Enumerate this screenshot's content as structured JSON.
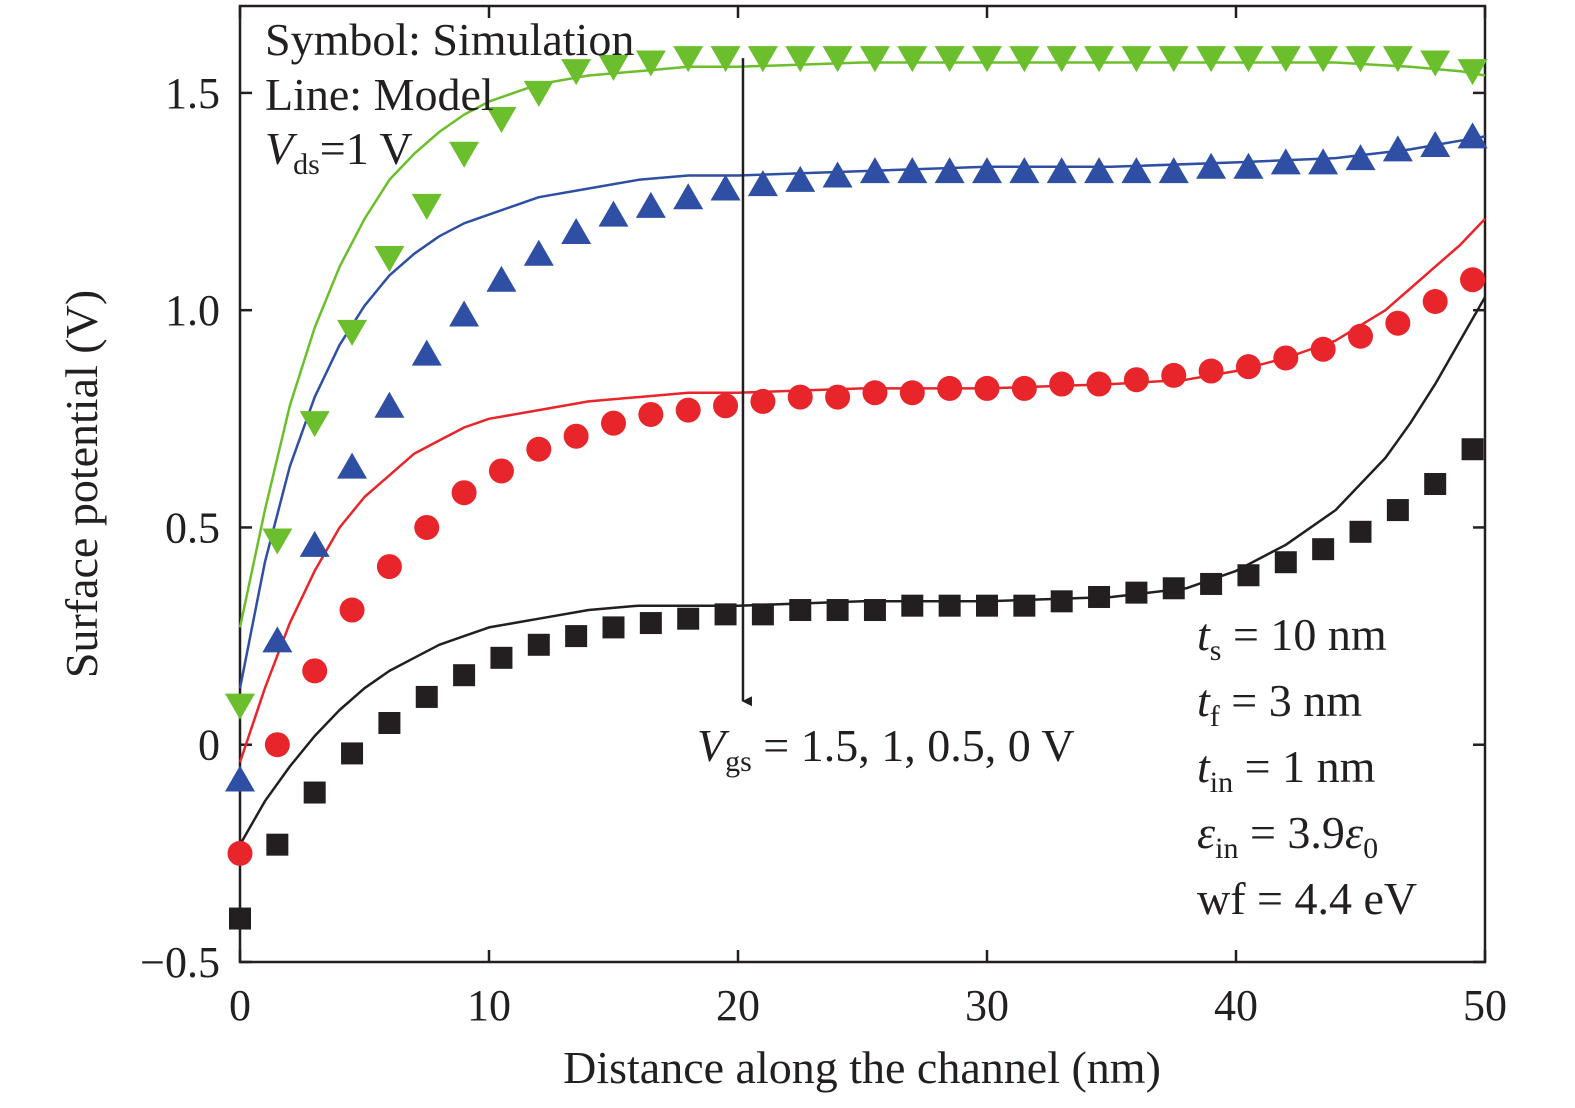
{
  "chart_data": {
    "type": "line",
    "xlabel": "Distance along the channel (nm)",
    "ylabel": "Surface potential (V)",
    "xlim": [
      0,
      50
    ],
    "ylim": [
      -0.5,
      1.7
    ],
    "x_ticks": [
      0,
      10,
      20,
      30,
      40,
      50
    ],
    "x_tick_labels": [
      "0",
      "10",
      "20",
      "30",
      "40",
      "50"
    ],
    "y_ticks": [
      -0.5,
      0,
      0.5,
      1.0,
      1.5
    ],
    "y_tick_labels": [
      "−0.5",
      "0",
      "0.5",
      "1.0",
      "1.5"
    ],
    "grid": false,
    "series": [
      {
        "name": "Vgs = 1.5 V",
        "color": "#6cbf2c",
        "marker": "triangle-down",
        "sim_x": [
          0,
          1.5,
          3,
          4.5,
          6,
          7.5,
          9,
          10.5,
          12,
          13.5,
          15,
          16.5,
          18,
          19.5,
          21,
          22.5,
          24,
          25.5,
          27,
          28.5,
          30,
          31.5,
          33,
          34.5,
          36,
          37.5,
          39,
          40.5,
          42,
          43.5,
          45,
          46.5,
          48,
          49.5
        ],
        "sim_y": [
          0.09,
          0.47,
          0.74,
          0.95,
          1.12,
          1.24,
          1.36,
          1.44,
          1.5,
          1.55,
          1.56,
          1.57,
          1.58,
          1.58,
          1.58,
          1.58,
          1.58,
          1.58,
          1.58,
          1.58,
          1.58,
          1.58,
          1.58,
          1.58,
          1.58,
          1.58,
          1.58,
          1.58,
          1.58,
          1.58,
          1.58,
          1.58,
          1.57,
          1.55
        ],
        "model_x": [
          0,
          1,
          2,
          3,
          4,
          5,
          6,
          7,
          8,
          9,
          10,
          12,
          14,
          16,
          18,
          20,
          25,
          30,
          35,
          40,
          44,
          47,
          49,
          50
        ],
        "model_y": [
          0.27,
          0.54,
          0.78,
          0.96,
          1.1,
          1.21,
          1.3,
          1.36,
          1.41,
          1.45,
          1.48,
          1.52,
          1.54,
          1.55,
          1.56,
          1.56,
          1.57,
          1.57,
          1.57,
          1.57,
          1.57,
          1.56,
          1.55,
          1.54
        ]
      },
      {
        "name": "Vgs = 1 V",
        "color": "#2e4fa3",
        "marker": "triangle-up",
        "sim_x": [
          0,
          1.5,
          3,
          4.5,
          6,
          7.5,
          9,
          10.5,
          12,
          13.5,
          15,
          16.5,
          18,
          19.5,
          21,
          22.5,
          24,
          25.5,
          27,
          28.5,
          30,
          31.5,
          33,
          34.5,
          36,
          37.5,
          39,
          40.5,
          42,
          43.5,
          45,
          46.5,
          48,
          49.5
        ],
        "sim_y": [
          -0.08,
          0.24,
          0.46,
          0.64,
          0.78,
          0.9,
          0.99,
          1.07,
          1.13,
          1.18,
          1.22,
          1.24,
          1.26,
          1.28,
          1.29,
          1.3,
          1.31,
          1.32,
          1.32,
          1.32,
          1.32,
          1.32,
          1.32,
          1.32,
          1.32,
          1.32,
          1.33,
          1.33,
          1.34,
          1.34,
          1.35,
          1.37,
          1.38,
          1.4
        ],
        "model_x": [
          0,
          1,
          2,
          3,
          4,
          5,
          6,
          7,
          8,
          9,
          10,
          12,
          14,
          16,
          18,
          20,
          25,
          30,
          35,
          40,
          44,
          47,
          49,
          50
        ],
        "model_y": [
          0.13,
          0.42,
          0.64,
          0.8,
          0.92,
          1.01,
          1.08,
          1.13,
          1.17,
          1.2,
          1.22,
          1.26,
          1.28,
          1.3,
          1.31,
          1.31,
          1.32,
          1.33,
          1.33,
          1.34,
          1.35,
          1.37,
          1.39,
          1.4
        ]
      },
      {
        "name": "Vgs = 0.5 V",
        "color": "#e8252a",
        "marker": "circle",
        "sim_x": [
          0,
          1.5,
          3,
          4.5,
          6,
          7.5,
          9,
          10.5,
          12,
          13.5,
          15,
          16.5,
          18,
          19.5,
          21,
          22.5,
          24,
          25.5,
          27,
          28.5,
          30,
          31.5,
          33,
          34.5,
          36,
          37.5,
          39,
          40.5,
          42,
          43.5,
          45,
          46.5,
          48,
          49.5
        ],
        "sim_y": [
          -0.25,
          0.0,
          0.17,
          0.31,
          0.41,
          0.5,
          0.58,
          0.63,
          0.68,
          0.71,
          0.74,
          0.76,
          0.77,
          0.78,
          0.79,
          0.8,
          0.8,
          0.81,
          0.81,
          0.82,
          0.82,
          0.82,
          0.83,
          0.83,
          0.84,
          0.85,
          0.86,
          0.87,
          0.89,
          0.91,
          0.94,
          0.97,
          1.02,
          1.07
        ],
        "model_x": [
          0,
          1,
          2,
          3,
          4,
          5,
          6,
          7,
          8,
          9,
          10,
          12,
          14,
          16,
          18,
          20,
          25,
          30,
          35,
          38,
          40,
          42,
          44,
          46,
          47,
          48,
          49,
          50
        ],
        "model_y": [
          -0.04,
          0.13,
          0.28,
          0.4,
          0.5,
          0.57,
          0.62,
          0.67,
          0.7,
          0.73,
          0.75,
          0.77,
          0.79,
          0.8,
          0.81,
          0.81,
          0.82,
          0.82,
          0.83,
          0.84,
          0.86,
          0.89,
          0.93,
          1.0,
          1.05,
          1.1,
          1.15,
          1.21
        ]
      },
      {
        "name": "Vgs = 0 V",
        "color": "#231f20",
        "marker": "square",
        "sim_x": [
          0,
          1.5,
          3,
          4.5,
          6,
          7.5,
          9,
          10.5,
          12,
          13.5,
          15,
          16.5,
          18,
          19.5,
          21,
          22.5,
          24,
          25.5,
          27,
          28.5,
          30,
          31.5,
          33,
          34.5,
          36,
          37.5,
          39,
          40.5,
          42,
          43.5,
          45,
          46.5,
          48,
          49.5
        ],
        "sim_y": [
          -0.4,
          -0.23,
          -0.11,
          -0.02,
          0.05,
          0.11,
          0.16,
          0.2,
          0.23,
          0.25,
          0.27,
          0.28,
          0.29,
          0.3,
          0.3,
          0.31,
          0.31,
          0.31,
          0.32,
          0.32,
          0.32,
          0.32,
          0.33,
          0.34,
          0.35,
          0.36,
          0.37,
          0.39,
          0.42,
          0.45,
          0.49,
          0.54,
          0.6,
          0.68
        ],
        "model_x": [
          0,
          1,
          2,
          3,
          4,
          5,
          6,
          7,
          8,
          9,
          10,
          12,
          14,
          16,
          18,
          20,
          25,
          30,
          35,
          38,
          40,
          42,
          44,
          46,
          47,
          48,
          49,
          50
        ],
        "model_y": [
          -0.23,
          -0.13,
          -0.05,
          0.02,
          0.08,
          0.13,
          0.17,
          0.2,
          0.23,
          0.25,
          0.27,
          0.29,
          0.31,
          0.32,
          0.32,
          0.32,
          0.33,
          0.33,
          0.34,
          0.36,
          0.4,
          0.46,
          0.54,
          0.66,
          0.74,
          0.83,
          0.93,
          1.03
        ]
      }
    ],
    "legend": {
      "symbol": "Symbol: Simulation",
      "line": "Line: Model",
      "vds_var": "V",
      "vds_sub": "ds",
      "vds_value": "=1 V"
    },
    "arrow_annotation": {
      "var": "V",
      "sub": "gs",
      "text": " = 1.5, 1, 0.5, 0 V",
      "x_data": 20.2,
      "y_from": 1.58,
      "y_to": 0.1
    },
    "parameters": [
      {
        "var": "t",
        "sub": "s",
        "value": " = 10 nm"
      },
      {
        "var": "t",
        "sub": "f",
        "value": " = 3 nm"
      },
      {
        "var": "t",
        "sub": "in",
        "value": " = 1 nm"
      },
      {
        "var": "ε",
        "sub": "in",
        "value": " = 3.9",
        "tail_var": "ε",
        "tail_sub": "0"
      },
      {
        "var": "",
        "sub": "",
        "value": "wf = 4.4 eV"
      }
    ]
  }
}
